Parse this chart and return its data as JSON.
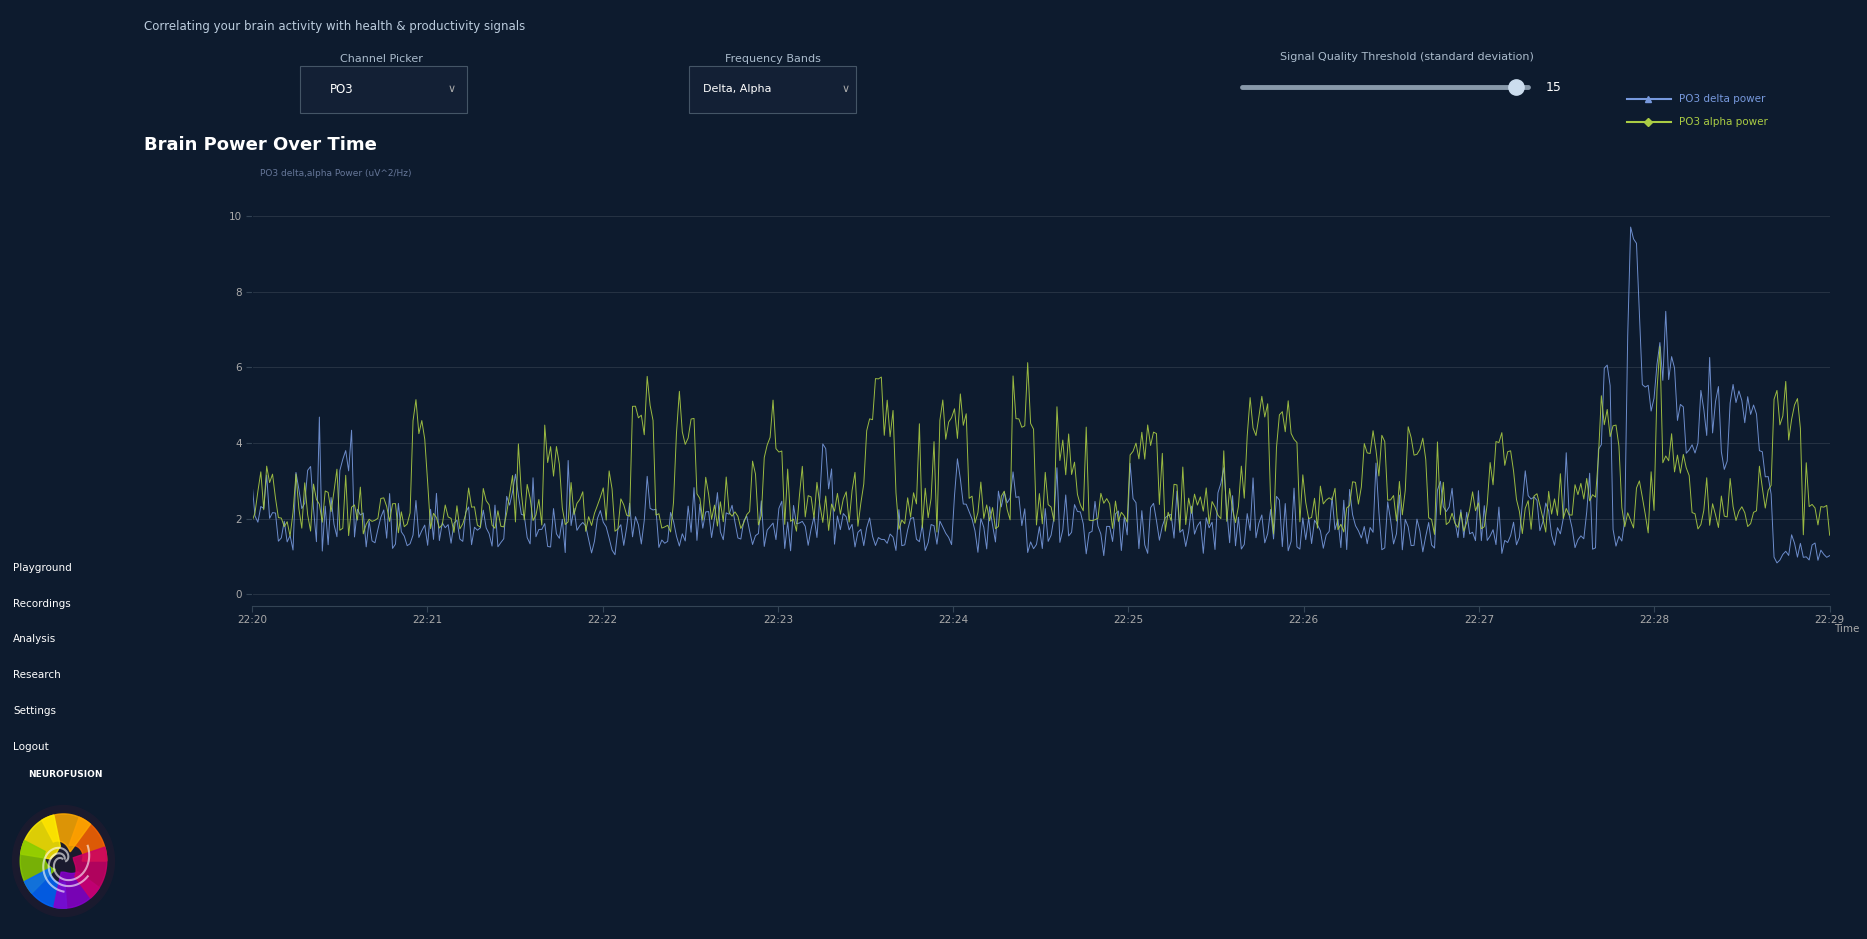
{
  "bg_color": "#0d1b2e",
  "sidebar_color": "#0d1b2e",
  "main_bg": "#0d1b2e",
  "chart_bg": "#0a1628",
  "title_text": "Correlating your brain activity with health & productivity signals",
  "title_color": "#cccccc",
  "channel_picker_label": "Channel Picker",
  "channel_picker_value": "PO3",
  "freq_band_label": "Frequency Bands",
  "freq_band_value": "Delta, Alpha",
  "signal_quality_label": "Signal Quality Threshold (standard deviation)",
  "signal_quality_value": "15",
  "chart_title": "Brain Power Over Time",
  "chart_ylabel": "PO3 delta,alpha Power (uV^2/Hz)",
  "chart_xlabel": "Time",
  "yticks": [
    0,
    2,
    4,
    6,
    8,
    10
  ],
  "ylim": [
    -0.3,
    10.5
  ],
  "xtick_labels": [
    "22:20",
    "22:21",
    "22:22",
    "22:23",
    "22:24",
    "22:25",
    "22:26",
    "22:27",
    "22:28",
    "22:29"
  ],
  "delta_color": "#7799dd",
  "alpha_color": "#aacc44",
  "legend_delta": "PO3 delta power",
  "legend_alpha": "PO3 alpha power",
  "sidebar_items": [
    "Playground",
    "Recordings",
    "Analysis",
    "Research",
    "Settings",
    "Logout"
  ],
  "neurofusion_text": "NEUROFUSION",
  "grid_color": "#ffffff",
  "grid_alpha": 0.18
}
